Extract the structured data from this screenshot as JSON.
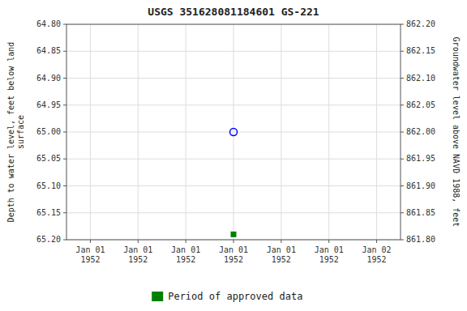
{
  "chart_data": {
    "type": "scatter",
    "title": "USGS 351628081184601 GS-221",
    "y_label": "Depth to water level, feet below land\nsurface",
    "y2_label": "Groundwater level above NAVD 1988, feet",
    "categories": [
      "Jan 01\n1952",
      "Jan 01\n1952",
      "Jan 01\n1952",
      "Jan 01\n1952",
      "Jan 01\n1952",
      "Jan 01\n1952",
      "Jan 02\n1952"
    ],
    "series": [
      {
        "color": "#0000ff",
        "marker": "open-circle",
        "values": [
          null,
          null,
          null,
          65.0,
          null,
          null,
          null
        ]
      },
      {
        "color": "#008000",
        "marker": "square",
        "values": [
          null,
          null,
          null,
          65.19,
          null,
          null,
          null
        ]
      },
      {
        "name": "Period of approved data",
        "color": "#008000",
        "type": "area",
        "values": [
          null,
          null,
          null,
          null,
          null,
          null,
          null
        ]
      }
    ],
    "ylim": [
      65.2,
      64.8
    ],
    "yticks": [
      {
        "value": 64.8,
        "label": "64.80"
      },
      64.85,
      {
        "value": 64.9,
        "label": "64.90"
      },
      64.95,
      {
        "value": 65.0,
        "label": "65.00"
      },
      65.05,
      {
        "value": 65.1,
        "label": "65.10"
      },
      65.15,
      {
        "value": 65.2,
        "label": "65.20"
      }
    ],
    "y2lim": [
      861.8,
      862.2
    ],
    "y2ticks": [
      {
        "value": 862.2,
        "label": "862.20"
      },
      862.15,
      {
        "value": 862.1,
        "label": "862.10"
      },
      862.05,
      {
        "value": 862.0,
        "label": "862.00"
      },
      861.95,
      {
        "value": 861.9,
        "label": "861.90"
      },
      861.85,
      {
        "value": 861.8,
        "label": "861.80"
      }
    ],
    "grid": true,
    "legend": "bottom"
  }
}
